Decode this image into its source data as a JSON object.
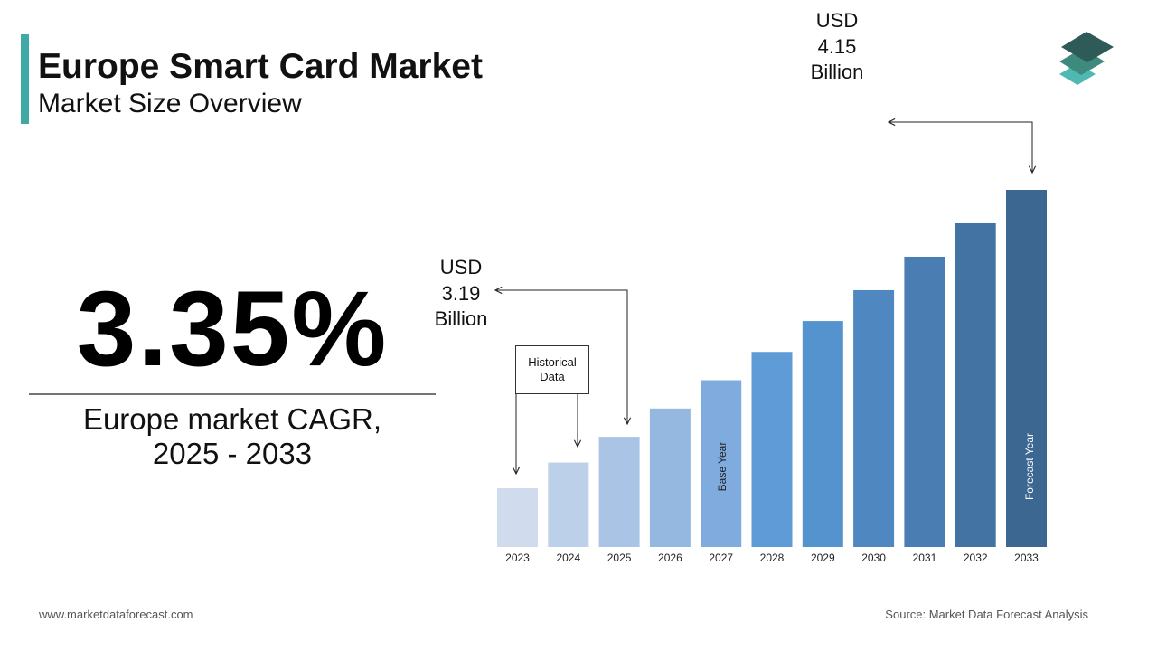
{
  "header": {
    "title": "Europe Smart Card Market",
    "subtitle": "Market Size Overview"
  },
  "highlight": {
    "value": "3.35%",
    "label": "Europe market CAGR, 2025 - 2033"
  },
  "chart_data": {
    "type": "bar",
    "categories": [
      "2023",
      "2024",
      "2025",
      "2026",
      "2027",
      "2028",
      "2029",
      "2030",
      "2031",
      "2032",
      "2033"
    ],
    "values": [
      2.99,
      3.09,
      3.19,
      3.3,
      3.41,
      3.52,
      3.64,
      3.76,
      3.89,
      4.02,
      4.15
    ],
    "value_labels": [
      null,
      null,
      "USD 3.19 Billion",
      null,
      null,
      null,
      null,
      null,
      null,
      null,
      "USD 4.15 Billion"
    ],
    "colors": [
      "#d0dcee",
      "#bdd0ea",
      "#aac4e6",
      "#95b8e0",
      "#7fabdf",
      "#5f9bd6",
      "#5593cf",
      "#4f88c0",
      "#4a7eb2",
      "#4373a2",
      "#3b6791"
    ],
    "annotations": {
      "historical": "Historical Data",
      "base": "Base Year",
      "forecast": "Forecast Year"
    }
  },
  "footer": {
    "website": "www.marketdataforecast.com",
    "source": "Source: Market Data Forecast Analysis"
  }
}
